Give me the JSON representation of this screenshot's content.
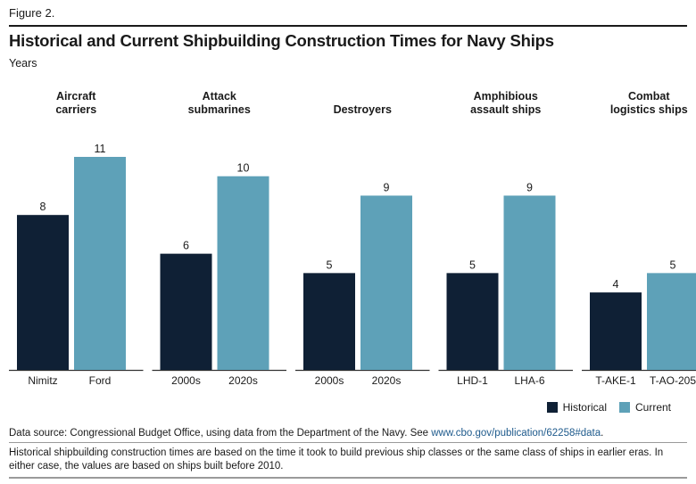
{
  "figure_label": "Figure 2.",
  "title": "Historical and Current Shipbuilding Construction Times for Navy Ships",
  "unit_label": "Years",
  "colors": {
    "historical": "#0f2035",
    "current": "#5ea1b8",
    "baseline": "#333333"
  },
  "chart_data": {
    "type": "bar",
    "ylabel": "Years",
    "ylim": [
      0,
      11
    ],
    "grid": false,
    "legend_position": "bottom-right",
    "groups": [
      {
        "label_lines": [
          "Aircraft",
          "carriers"
        ],
        "bars": [
          {
            "series": "Historical",
            "label": "Nimitz",
            "value": 8
          },
          {
            "series": "Current",
            "label": "Ford",
            "value": 11
          }
        ]
      },
      {
        "label_lines": [
          "Attack",
          "submarines"
        ],
        "bars": [
          {
            "series": "Historical",
            "label": "2000s",
            "value": 6
          },
          {
            "series": "Current",
            "label": "2020s",
            "value": 10
          }
        ]
      },
      {
        "label_lines": [
          "Destroyers"
        ],
        "bars": [
          {
            "series": "Historical",
            "label": "2000s",
            "value": 5
          },
          {
            "series": "Current",
            "label": "2020s",
            "value": 9
          }
        ]
      },
      {
        "label_lines": [
          "Amphibious",
          "assault ships"
        ],
        "bars": [
          {
            "series": "Historical",
            "label": "LHD-1",
            "value": 5
          },
          {
            "series": "Current",
            "label": "LHA-6",
            "value": 9
          }
        ]
      },
      {
        "label_lines": [
          "Combat",
          "logistics ships"
        ],
        "bars": [
          {
            "series": "Historical",
            "label": "T-AKE-1",
            "value": 4
          },
          {
            "series": "Current",
            "label": "T-AO-205",
            "value": 5
          }
        ]
      }
    ]
  },
  "legend": {
    "historical": "Historical",
    "current": "Current"
  },
  "source": {
    "prefix": "Data source: Congressional Budget Office, using data from the Department of the Navy. See ",
    "link": "www.cbo.gov/publication/62258#data",
    "suffix": "."
  },
  "note": "Historical shipbuilding construction times are based on the time it took to build previous ship classes or the same class of ships in earlier eras. In either case, the values are based on ships built before 2010."
}
